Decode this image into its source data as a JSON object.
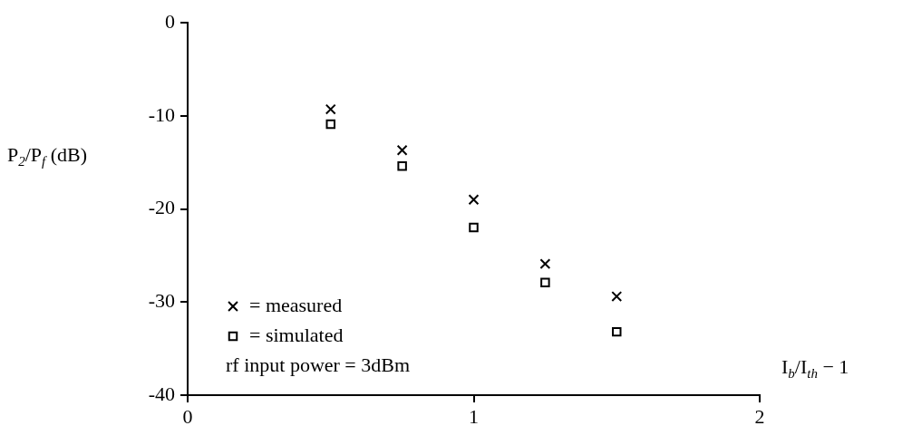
{
  "chart_data": {
    "type": "scatter",
    "xlabel": "I$_{b}$/I$_{th}$ − 1",
    "ylabel": "P$_{2}$/P$_{f}$ (dB)",
    "x": [
      0.5,
      0.75,
      1,
      1.25,
      1.5
    ],
    "series": [
      {
        "name": "= measured",
        "color": "#000000",
        "marker": "cross",
        "values": [
          -9.3,
          -13.7,
          -19.0,
          -25.9,
          -29.4
        ]
      },
      {
        "name": "= simulated",
        "color": "#000000",
        "marker": "square",
        "values": [
          -10.9,
          -15.4,
          -22.0,
          -27.9,
          -33.2
        ]
      }
    ],
    "xlim": [
      0,
      2
    ],
    "xticks": [
      0,
      1,
      2
    ],
    "ylim": [
      -40,
      0
    ],
    "yticks": [
      0,
      -10,
      -20,
      -30,
      -40
    ],
    "grid": false,
    "legend": "bottom left",
    "annotations": [
      "rf input power = 3dBm"
    ]
  }
}
